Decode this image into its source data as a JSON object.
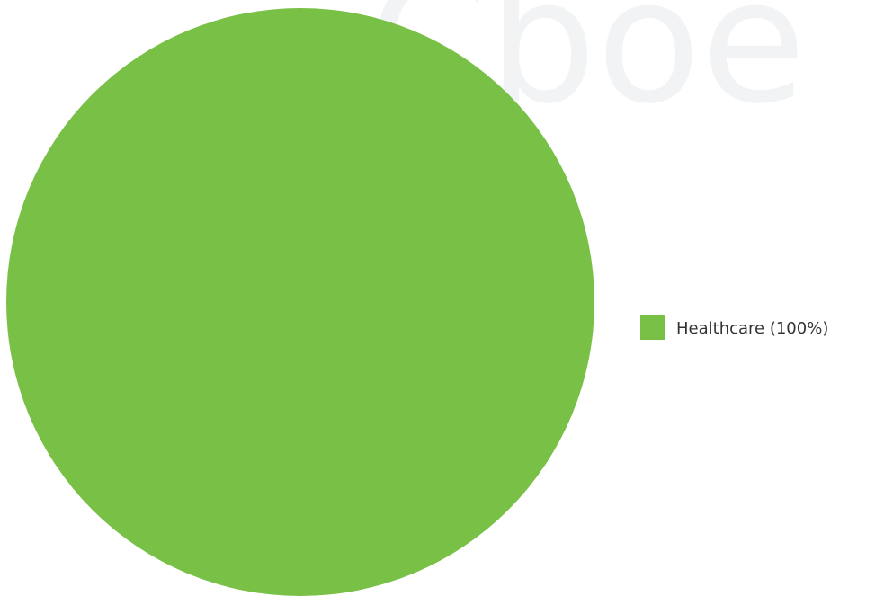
{
  "watermark": "Cboe",
  "chart_data": {
    "type": "pie",
    "slices": [
      {
        "label": "Healthcare (100%)",
        "value": 100,
        "color": "#79c046"
      }
    ],
    "legend": "right"
  }
}
